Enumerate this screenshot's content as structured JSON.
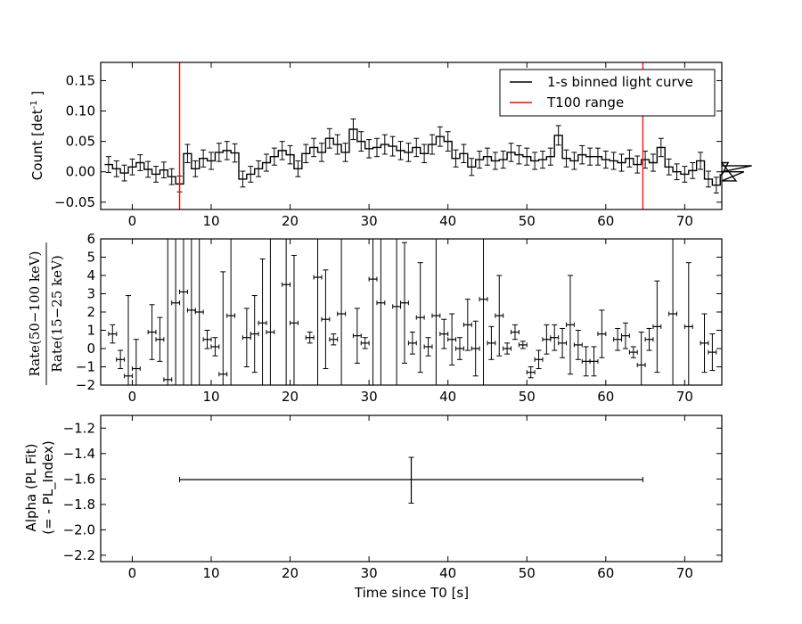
{
  "chart_data": [
    {
      "type": "line",
      "subtype": "step-with-errorbars",
      "ylabel_prefix": "Count [det",
      "ylabel_sup": "-1",
      "ylabel_suffix": " ]",
      "xlim": [
        -4,
        74.7
      ],
      "ylim": [
        -0.062,
        0.18
      ],
      "yticks": [
        -0.05,
        0.0,
        0.05,
        0.1,
        0.15
      ],
      "ytick_labels": [
        "−0.05",
        "0.00",
        "0.05",
        "0.10",
        "0.15"
      ],
      "xticks": [
        0,
        10,
        20,
        30,
        40,
        50,
        60,
        70
      ],
      "xtick_labels": [
        "0",
        "10",
        "20",
        "30",
        "40",
        "50",
        "60",
        "70"
      ],
      "legend_position": "top-right",
      "series": [
        {
          "name": "1-s binned light curve",
          "color": "#000000",
          "x_start": -3.5,
          "x_step": 1,
          "y": [
            0.012,
            0.005,
            -0.002,
            0.008,
            0.015,
            0.004,
            -0.004,
            0.003,
            -0.008,
            -0.02,
            0.03,
            0.005,
            0.022,
            0.018,
            0.032,
            0.035,
            0.031,
            -0.012,
            -0.004,
            0.005,
            0.015,
            0.025,
            0.035,
            0.028,
            0.005,
            0.03,
            0.04,
            0.032,
            0.055,
            0.045,
            0.032,
            0.07,
            0.05,
            0.038,
            0.04,
            0.045,
            0.042,
            0.035,
            0.032,
            0.04,
            0.03,
            0.045,
            0.058,
            0.05,
            0.022,
            0.03,
            0.008,
            0.02,
            0.025,
            0.018,
            0.02,
            0.032,
            0.028,
            0.025,
            0.018,
            0.02,
            0.025,
            0.06,
            0.022,
            0.018,
            0.028,
            0.025,
            0.025,
            0.02,
            0.018,
            0.015,
            0.022,
            0.012,
            0.02,
            0.015,
            0.04,
            0.008,
            0.0,
            -0.004,
            0.002,
            0.018,
            -0.012,
            -0.022,
            -0.005,
            0.015,
            -0.015,
            0.0,
            0.01
          ],
          "yerr": [
            0.013,
            0.013,
            0.013,
            0.013,
            0.013,
            0.013,
            0.013,
            0.013,
            0.013,
            0.013,
            0.015,
            0.013,
            0.014,
            0.014,
            0.015,
            0.015,
            0.015,
            0.013,
            0.013,
            0.013,
            0.014,
            0.014,
            0.015,
            0.015,
            0.013,
            0.015,
            0.015,
            0.015,
            0.016,
            0.016,
            0.015,
            0.017,
            0.016,
            0.015,
            0.015,
            0.016,
            0.016,
            0.015,
            0.015,
            0.015,
            0.015,
            0.016,
            0.016,
            0.016,
            0.014,
            0.015,
            0.014,
            0.014,
            0.014,
            0.014,
            0.014,
            0.015,
            0.015,
            0.014,
            0.014,
            0.014,
            0.014,
            0.016,
            0.014,
            0.014,
            0.015,
            0.014,
            0.014,
            0.014,
            0.014,
            0.014,
            0.014,
            0.014,
            0.014,
            0.014,
            0.015,
            0.013,
            0.013,
            0.013,
            0.013,
            0.014,
            0.013,
            0.013,
            0.013,
            0.014,
            0.013,
            0.013,
            0.013
          ]
        },
        {
          "name": "T100 range",
          "color": "#ff0000",
          "type": "vline",
          "x": [
            6.0,
            64.7
          ]
        }
      ]
    },
    {
      "type": "scatter",
      "subtype": "errorbars",
      "ylabel_num": "Rate(50−100 keV)",
      "ylabel_den": "Rate(15−25 keV)",
      "xlim": [
        -4,
        74.7
      ],
      "ylim": [
        -2,
        6
      ],
      "yticks": [
        -2,
        -1,
        0,
        1,
        2,
        3,
        4,
        5,
        6
      ],
      "ytick_labels": [
        "−2",
        "−1",
        "0",
        "1",
        "2",
        "3",
        "4",
        "5",
        "6"
      ],
      "xticks": [
        0,
        10,
        20,
        30,
        40,
        50,
        60,
        70
      ],
      "xtick_labels": [
        "0",
        "10",
        "20",
        "30",
        "40",
        "50",
        "60",
        "70"
      ],
      "series": [
        {
          "color": "#000000",
          "x_start": -2.5,
          "x_step": 1,
          "y": [
            0.8,
            -0.6,
            -1.5,
            -1.1,
            null,
            0.9,
            0.5,
            -1.7,
            2.5,
            3.1,
            2.1,
            2.0,
            0.5,
            0.1,
            -1.4,
            1.8,
            null,
            0.6,
            0.8,
            1.4,
            0.9,
            null,
            3.5,
            1.4,
            null,
            0.6,
            3.9,
            1.6,
            0.5,
            1.9,
            null,
            0.7,
            0.3,
            3.8,
            2.5,
            null,
            2.3,
            2.5,
            0.3,
            1.7,
            0.1,
            1.8,
            0.8,
            0.5,
            0.0,
            1.3,
            0.0,
            2.7,
            0.3,
            1.8,
            0.0,
            0.9,
            0.2,
            -1.3,
            -0.6,
            0.5,
            0.6,
            0.3,
            1.3,
            0.2,
            -0.7,
            -0.7,
            0.8,
            null,
            0.5,
            0.7,
            -0.2,
            -0.9,
            0.5,
            1.2,
            null,
            1.9,
            null,
            1.2,
            null,
            0.3,
            -0.2
          ],
          "yerr": [
            0.5,
            0.5,
            4.4,
            1.6,
            null,
            1.5,
            1.2,
            7.7,
            7.5,
            7.5,
            7.5,
            7.5,
            0.5,
            0.5,
            5.6,
            7.5,
            null,
            1.6,
            2.1,
            3.5,
            7.5,
            null,
            7.5,
            3.7,
            null,
            0.3,
            7.5,
            2.7,
            0.3,
            7.5,
            null,
            1.5,
            0.3,
            7.5,
            7.5,
            null,
            4.3,
            3.3,
            0.6,
            3.0,
            0.5,
            5.0,
            0.8,
            1.4,
            0.6,
            1.4,
            1.5,
            7.5,
            0.9,
            2.2,
            0.3,
            0.4,
            0.2,
            0.3,
            0.5,
            0.8,
            0.7,
            0.8,
            2.7,
            0.8,
            0.8,
            0.8,
            1.3,
            null,
            0.6,
            0.7,
            0.3,
            1.8,
            0.6,
            2.5,
            null,
            7.5,
            null,
            3.5,
            null,
            1.6,
            1.0
          ],
          "xerr": 0.5
        }
      ]
    },
    {
      "type": "scatter",
      "subtype": "errorbars",
      "ylabel_line1": "Alpha (PL Fit)",
      "ylabel_line2": "(= - PL_Index)",
      "xlabel": "Time since T0 [s]",
      "xlim": [
        -4,
        74.7
      ],
      "ylim": [
        -2.25,
        -1.1
      ],
      "yticks": [
        -2.2,
        -2.0,
        -1.8,
        -1.6,
        -1.4,
        -1.2
      ],
      "ytick_labels": [
        "−2.2",
        "−2.0",
        "−1.8",
        "−1.6",
        "−1.4",
        "−1.2"
      ],
      "xticks": [
        0,
        10,
        20,
        30,
        40,
        50,
        60,
        70
      ],
      "xtick_labels": [
        "0",
        "10",
        "20",
        "30",
        "40",
        "50",
        "60",
        "70"
      ],
      "series": [
        {
          "color": "#000000",
          "x": [
            35.35
          ],
          "y": [
            -1.605
          ],
          "xerr": [
            29.35
          ],
          "yerr_low": [
            0.185
          ],
          "yerr_high": [
            0.175
          ]
        }
      ]
    }
  ]
}
